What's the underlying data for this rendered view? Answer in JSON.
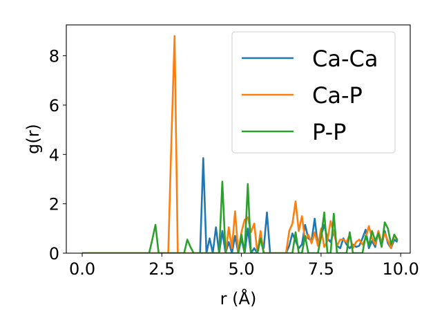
{
  "chart_data": {
    "type": "line",
    "title": "",
    "xlabel": "r (Å)",
    "ylabel": "g(r)",
    "xlim": [
      -0.5,
      10.3
    ],
    "ylim": [
      0,
      9.25
    ],
    "xticks": [
      0.0,
      2.5,
      5.0,
      7.5,
      10.0
    ],
    "xtick_labels": [
      "0.0",
      "2.5",
      "5.0",
      "7.5",
      "10.0"
    ],
    "yticks": [
      0,
      2,
      4,
      6,
      8
    ],
    "ytick_labels": [
      "0",
      "2",
      "4",
      "6",
      "8"
    ],
    "grid": false,
    "legend_position": "top-right",
    "series": [
      {
        "name": "Ca-Ca",
        "color": "#1f77b4",
        "points": [
          [
            0.0,
            0
          ],
          [
            3.7,
            0
          ],
          [
            3.8,
            3.85
          ],
          [
            3.9,
            0
          ],
          [
            4.0,
            0.6
          ],
          [
            4.1,
            0
          ],
          [
            4.2,
            1.05
          ],
          [
            4.3,
            0
          ],
          [
            4.4,
            0.9
          ],
          [
            4.5,
            0
          ],
          [
            4.6,
            0.45
          ],
          [
            4.7,
            0
          ],
          [
            4.8,
            0.7
          ],
          [
            4.9,
            0
          ],
          [
            5.0,
            0.6
          ],
          [
            5.1,
            0
          ],
          [
            5.2,
            1.0
          ],
          [
            5.3,
            0
          ],
          [
            5.4,
            0.2
          ],
          [
            5.5,
            0
          ],
          [
            5.6,
            0.6
          ],
          [
            5.7,
            0.2
          ],
          [
            5.8,
            1.65
          ],
          [
            5.9,
            0
          ],
          [
            6.4,
            0
          ],
          [
            6.5,
            0.3
          ],
          [
            6.6,
            0.8
          ],
          [
            6.7,
            0.5
          ],
          [
            6.8,
            0.2
          ],
          [
            6.9,
            0.35
          ],
          [
            7.0,
            1.15
          ],
          [
            7.1,
            0.6
          ],
          [
            7.2,
            0.5
          ],
          [
            7.3,
            1.4
          ],
          [
            7.4,
            0.3
          ],
          [
            7.5,
            0.7
          ],
          [
            7.6,
            1.15
          ],
          [
            7.7,
            0.6
          ],
          [
            7.8,
            0.45
          ],
          [
            7.9,
            0.9
          ],
          [
            8.0,
            0.3
          ],
          [
            8.1,
            0.2
          ],
          [
            8.2,
            0.6
          ],
          [
            8.3,
            0.35
          ],
          [
            8.4,
            0.2
          ],
          [
            8.5,
            0.35
          ],
          [
            8.6,
            0.25
          ],
          [
            8.7,
            0.3
          ],
          [
            8.8,
            0.6
          ],
          [
            8.9,
            0.95
          ],
          [
            9.0,
            0.2
          ],
          [
            9.1,
            0.5
          ],
          [
            9.2,
            0.25
          ],
          [
            9.3,
            0.9
          ],
          [
            9.4,
            0.3
          ],
          [
            9.5,
            0.9
          ],
          [
            9.6,
            0.4
          ],
          [
            9.7,
            0.2
          ],
          [
            9.8,
            0.55
          ],
          [
            9.9,
            0.45
          ]
        ]
      },
      {
        "name": "Ca-P",
        "color": "#ff7f0e",
        "points": [
          [
            0.0,
            0
          ],
          [
            2.7,
            0
          ],
          [
            2.8,
            4.6
          ],
          [
            2.9,
            8.8
          ],
          [
            3.0,
            0
          ],
          [
            4.5,
            0
          ],
          [
            4.6,
            1.05
          ],
          [
            4.7,
            0.2
          ],
          [
            4.8,
            1.7
          ],
          [
            4.9,
            0
          ],
          [
            5.0,
            0.85
          ],
          [
            5.1,
            1.35
          ],
          [
            5.2,
            1.45
          ],
          [
            5.3,
            0.85
          ],
          [
            5.4,
            1.2
          ],
          [
            5.5,
            0
          ],
          [
            5.6,
            0.9
          ],
          [
            5.7,
            0
          ],
          [
            6.4,
            0
          ],
          [
            6.5,
            0.9
          ],
          [
            6.6,
            1.2
          ],
          [
            6.7,
            2.1
          ],
          [
            6.8,
            0.9
          ],
          [
            6.9,
            1.5
          ],
          [
            7.0,
            0.5
          ],
          [
            7.1,
            0.75
          ],
          [
            7.2,
            0.4
          ],
          [
            7.3,
            0.85
          ],
          [
            7.4,
            0.3
          ],
          [
            7.5,
            1.0
          ],
          [
            7.6,
            0.25
          ],
          [
            7.7,
            0.5
          ],
          [
            7.8,
            1.3
          ],
          [
            7.9,
            0.85
          ],
          [
            8.0,
            0.3
          ],
          [
            8.1,
            0.55
          ],
          [
            8.2,
            0.55
          ],
          [
            8.3,
            0.45
          ],
          [
            8.4,
            0.75
          ],
          [
            8.5,
            0.2
          ],
          [
            8.6,
            0.45
          ],
          [
            8.7,
            0.55
          ],
          [
            8.8,
            0.35
          ],
          [
            8.9,
            0.6
          ],
          [
            9.0,
            1.1
          ],
          [
            9.1,
            0.6
          ],
          [
            9.2,
            0.35
          ],
          [
            9.3,
            0.9
          ],
          [
            9.4,
            0.45
          ],
          [
            9.5,
            0.8
          ],
          [
            9.6,
            0.5
          ],
          [
            9.7,
            0.2
          ],
          [
            9.8,
            0.75
          ],
          [
            9.9,
            0.55
          ]
        ]
      },
      {
        "name": "P-P",
        "color": "#2ca02c",
        "points": [
          [
            0.0,
            0
          ],
          [
            2.1,
            0
          ],
          [
            2.2,
            0.55
          ],
          [
            2.3,
            1.15
          ],
          [
            2.4,
            0
          ],
          [
            3.2,
            0
          ],
          [
            3.3,
            0.55
          ],
          [
            3.4,
            0.25
          ],
          [
            3.5,
            0
          ],
          [
            4.3,
            0
          ],
          [
            4.4,
            2.9
          ],
          [
            4.5,
            0
          ],
          [
            4.9,
            0
          ],
          [
            5.0,
            0.75
          ],
          [
            5.1,
            0
          ],
          [
            5.2,
            2.8
          ],
          [
            5.3,
            0
          ],
          [
            5.5,
            0
          ],
          [
            5.6,
            0.6
          ],
          [
            5.7,
            0
          ],
          [
            6.6,
            0
          ],
          [
            6.7,
            0.85
          ],
          [
            6.8,
            0
          ],
          [
            6.9,
            0
          ],
          [
            7.0,
            0.7
          ],
          [
            7.1,
            0
          ],
          [
            7.4,
            0
          ],
          [
            7.5,
            0.65
          ],
          [
            7.6,
            1.65
          ],
          [
            7.7,
            0
          ],
          [
            7.8,
            0
          ],
          [
            7.9,
            1.6
          ],
          [
            8.0,
            0
          ],
          [
            8.3,
            0
          ],
          [
            8.4,
            0.85
          ],
          [
            8.5,
            0
          ],
          [
            8.8,
            0
          ],
          [
            8.9,
            0.7
          ],
          [
            9.0,
            0.3
          ],
          [
            9.1,
            0.9
          ],
          [
            9.2,
            0.5
          ],
          [
            9.3,
            0.8
          ],
          [
            9.4,
            0.25
          ],
          [
            9.5,
            1.25
          ],
          [
            9.6,
            1.0
          ],
          [
            9.7,
            0.35
          ],
          [
            9.8,
            0.75
          ],
          [
            9.9,
            0.5
          ]
        ]
      }
    ]
  }
}
